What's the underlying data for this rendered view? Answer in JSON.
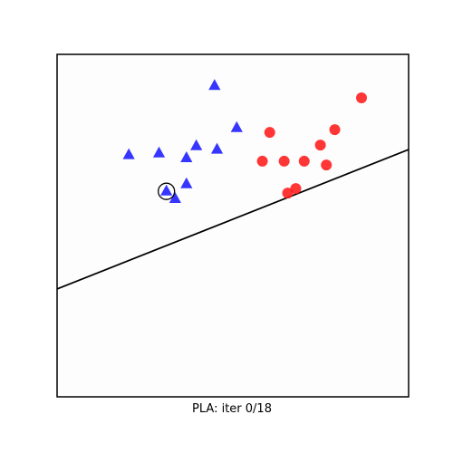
{
  "chart_data": {
    "type": "scatter",
    "title": "",
    "xlabel": "PLA: iter 0/18",
    "ylabel": "",
    "xlim": [
      0,
      1
    ],
    "ylim": [
      0,
      1
    ],
    "grid": false,
    "legend": "none",
    "series": [
      {
        "marker": "triangle",
        "color": "#1a1aff",
        "points": [
          {
            "x": 0.448,
            "y": 0.908
          },
          {
            "x": 0.511,
            "y": 0.785
          },
          {
            "x": 0.204,
            "y": 0.706
          },
          {
            "x": 0.29,
            "y": 0.711
          },
          {
            "x": 0.396,
            "y": 0.732
          },
          {
            "x": 0.455,
            "y": 0.722
          },
          {
            "x": 0.368,
            "y": 0.697
          },
          {
            "x": 0.368,
            "y": 0.621
          },
          {
            "x": 0.311,
            "y": 0.6
          },
          {
            "x": 0.336,
            "y": 0.578
          }
        ]
      },
      {
        "marker": "circle",
        "color": "#ff1a1a",
        "points": [
          {
            "x": 0.866,
            "y": 0.873
          },
          {
            "x": 0.79,
            "y": 0.78
          },
          {
            "x": 0.605,
            "y": 0.772
          },
          {
            "x": 0.749,
            "y": 0.735
          },
          {
            "x": 0.584,
            "y": 0.688
          },
          {
            "x": 0.646,
            "y": 0.688
          },
          {
            "x": 0.703,
            "y": 0.688
          },
          {
            "x": 0.766,
            "y": 0.677
          },
          {
            "x": 0.679,
            "y": 0.608
          },
          {
            "x": 0.656,
            "y": 0.595
          }
        ]
      }
    ],
    "boundary_line": {
      "x": [
        0,
        1
      ],
      "y": [
        0.315,
        0.722
      ],
      "color": "#000000"
    },
    "highlighted_point": {
      "x": 0.311,
      "y": 0.6
    }
  }
}
